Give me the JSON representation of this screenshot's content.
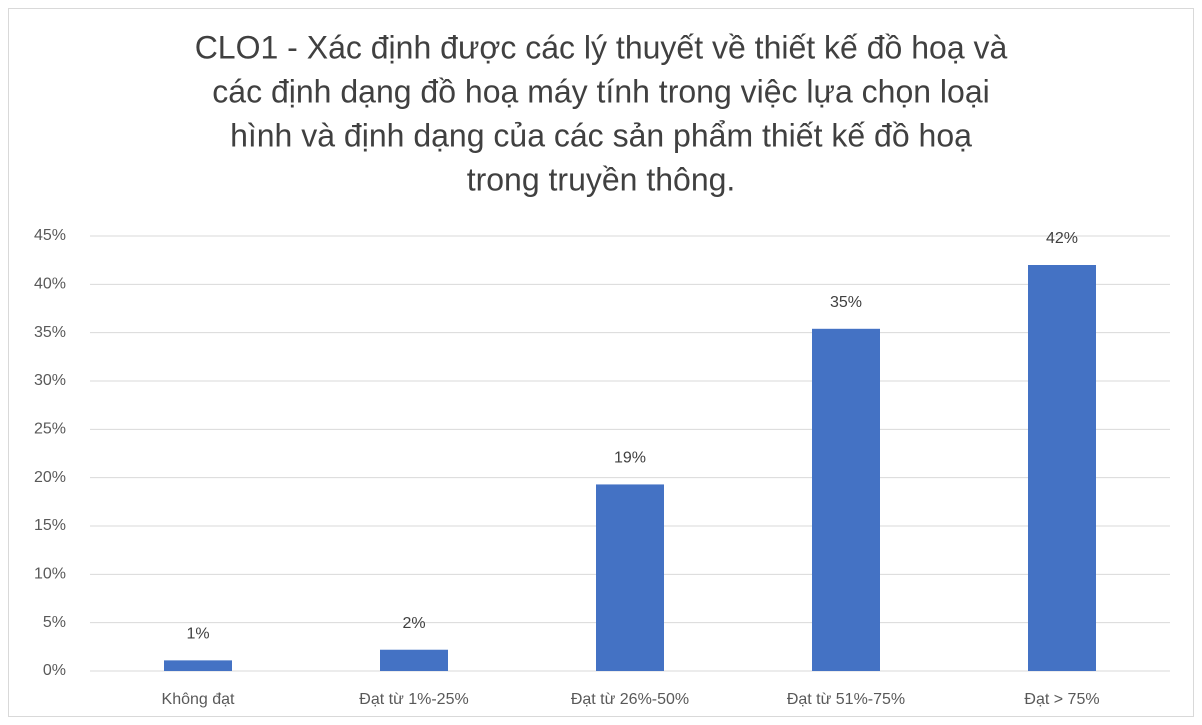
{
  "chart_data": {
    "type": "bar",
    "title": [
      "CLO1 - Xác định được các lý thuyết về thiết kế đồ hoạ và",
      "các định dạng đồ hoạ máy tính trong việc lựa chọn loại",
      "hình và định dạng của các sản phẩm thiết kế đồ hoạ",
      "trong truyền thông."
    ],
    "categories": [
      "Không đạt",
      "Đạt từ 1%-25%",
      "Đạt từ 26%-50%",
      "Đạt từ 51%-75%",
      "Đạt > 75%"
    ],
    "values": [
      1.1,
      2.2,
      19.3,
      35.4,
      42.0
    ],
    "value_labels": [
      "1%",
      "2%",
      "19%",
      "35%",
      "42%"
    ],
    "color": "#4472c4",
    "ylim": [
      0,
      45
    ],
    "yticks": [
      {
        "value": 0,
        "label": "0%"
      },
      {
        "value": 5,
        "label": "5%"
      },
      {
        "value": 10,
        "label": "10%"
      },
      {
        "value": 15,
        "label": "15%"
      },
      {
        "value": 20,
        "label": "20%"
      },
      {
        "value": 25,
        "label": "25%"
      },
      {
        "value": 30,
        "label": "30%"
      },
      {
        "value": 35,
        "label": "35%"
      },
      {
        "value": 40,
        "label": "40%"
      },
      {
        "value": 45,
        "label": "45%"
      }
    ],
    "grid": true
  }
}
